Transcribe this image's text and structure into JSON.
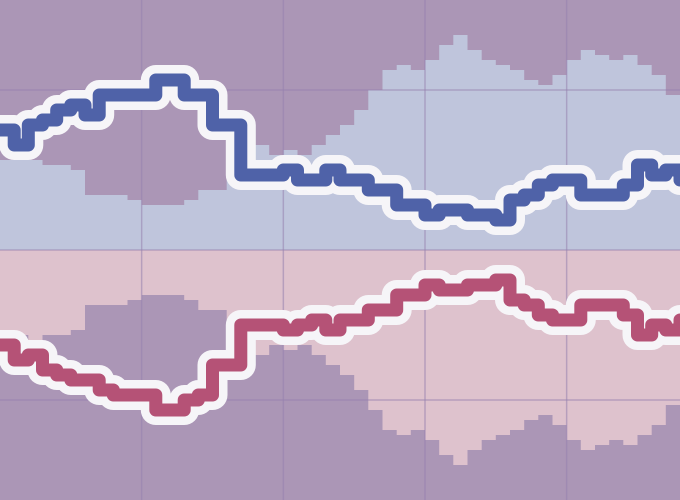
{
  "chart_data": {
    "type": "line",
    "title": "",
    "xlabel": "",
    "ylabel": "",
    "grid": true,
    "legend": "none",
    "xlim": [
      0,
      48
    ],
    "ylim": [
      0,
      100
    ],
    "x": [
      0,
      1,
      2,
      3,
      4,
      5,
      6,
      7,
      8,
      9,
      10,
      11,
      12,
      13,
      14,
      15,
      16,
      17,
      18,
      19,
      20,
      21,
      22,
      23,
      24,
      25,
      26,
      27,
      28,
      29,
      30,
      31,
      32,
      33,
      34,
      35,
      36,
      37,
      38,
      39,
      40,
      41,
      42,
      43,
      44,
      45,
      46,
      47,
      48
    ],
    "series": [
      {
        "name": "blue",
        "color": "#4f62a8",
        "band_color": "#ab96b6",
        "band_from": "top",
        "values": [
          74,
          71,
          75,
          76,
          78,
          79,
          77,
          81,
          81,
          81,
          81,
          84,
          84,
          81,
          81,
          75,
          75,
          65,
          65,
          65,
          66,
          64,
          64,
          66,
          64,
          64,
          62,
          62,
          59,
          59,
          57,
          58,
          58,
          57,
          57,
          56,
          60,
          61,
          63,
          64,
          64,
          61,
          61,
          61,
          63,
          67,
          65,
          66,
          64
        ],
        "band": [
          68,
          68,
          68,
          67,
          67,
          66,
          61,
          61,
          61,
          60,
          59,
          59,
          59,
          60,
          62,
          62,
          70,
          71,
          71,
          69,
          70,
          69,
          71,
          73,
          75,
          78,
          82,
          86,
          87,
          86,
          88,
          91,
          93,
          90,
          88,
          87,
          86,
          84,
          83,
          85,
          88,
          90,
          89,
          88,
          89,
          87,
          85,
          81,
          83
        ]
      },
      {
        "name": "red",
        "color": "#b55276",
        "band_color": "#ab96b6",
        "band_from": "bottom",
        "values": [
          31,
          28,
          29,
          26,
          25,
          24,
          24,
          22,
          21,
          21,
          21,
          18,
          18,
          20,
          21,
          27,
          27,
          35,
          35,
          35,
          34,
          35,
          36,
          34,
          36,
          36,
          38,
          38,
          41,
          41,
          43,
          42,
          42,
          43,
          43,
          44,
          40,
          39,
          37,
          36,
          36,
          39,
          39,
          39,
          37,
          33,
          35,
          34,
          36
        ],
        "band": [
          34,
          33,
          32,
          33,
          33,
          34,
          39,
          39,
          39,
          40,
          41,
          41,
          41,
          40,
          38,
          38,
          30,
          29,
          29,
          31,
          30,
          31,
          29,
          27,
          25,
          22,
          18,
          14,
          13,
          14,
          12,
          9,
          7,
          10,
          12,
          13,
          14,
          16,
          17,
          15,
          12,
          10,
          11,
          12,
          11,
          13,
          15,
          19,
          17
        ]
      }
    ]
  }
}
